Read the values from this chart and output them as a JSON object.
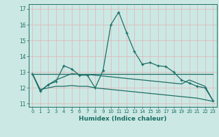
{
  "title": "",
  "xlabel": "Humidex (Indice chaleur)",
  "bg_color": "#cce8e4",
  "grid_color": "#ddbbbb",
  "line_color": "#1a6e64",
  "xlim": [
    -0.5,
    23.5
  ],
  "ylim": [
    10.8,
    17.3
  ],
  "yticks": [
    11,
    12,
    13,
    14,
    15,
    16,
    17
  ],
  "xticks": [
    0,
    1,
    2,
    3,
    4,
    5,
    6,
    7,
    8,
    9,
    10,
    11,
    12,
    13,
    14,
    15,
    16,
    17,
    18,
    19,
    20,
    21,
    22,
    23
  ],
  "series1_x": [
    0,
    1,
    2,
    3,
    4,
    5,
    6,
    7,
    8,
    9,
    10,
    11,
    12,
    13,
    14,
    15,
    16,
    17,
    18,
    19,
    20,
    21,
    22,
    23
  ],
  "series1_y": [
    12.9,
    11.8,
    12.2,
    12.4,
    13.4,
    13.2,
    12.8,
    12.8,
    12.0,
    13.1,
    16.0,
    16.8,
    15.5,
    14.3,
    13.5,
    13.6,
    13.4,
    13.35,
    13.0,
    12.5,
    12.3,
    12.1,
    12.0,
    11.2
  ],
  "series2_x": [
    0,
    1,
    2,
    3,
    4,
    5,
    6,
    7,
    8,
    9,
    10,
    11,
    12,
    13,
    14,
    15,
    16,
    17,
    18,
    19,
    20,
    21,
    22,
    23
  ],
  "series2_y": [
    12.9,
    12.9,
    12.9,
    12.9,
    12.9,
    12.9,
    12.9,
    12.9,
    12.9,
    12.9,
    12.9,
    12.9,
    12.9,
    12.9,
    12.9,
    12.9,
    12.9,
    12.9,
    12.9,
    12.9,
    12.9,
    12.9,
    12.9,
    12.9
  ],
  "series3_x": [
    0,
    1,
    2,
    3,
    4,
    5,
    6,
    7,
    8,
    9,
    10,
    11,
    12,
    13,
    14,
    15,
    16,
    17,
    18,
    19,
    20,
    21,
    22,
    23
  ],
  "series3_y": [
    12.9,
    11.8,
    12.2,
    12.5,
    12.7,
    12.9,
    12.85,
    12.85,
    12.8,
    12.75,
    12.7,
    12.65,
    12.6,
    12.55,
    12.5,
    12.45,
    12.4,
    12.35,
    12.3,
    12.25,
    12.5,
    12.3,
    12.1,
    11.2
  ],
  "series4_x": [
    0,
    1,
    2,
    3,
    4,
    5,
    6,
    7,
    8,
    9,
    10,
    11,
    12,
    13,
    14,
    15,
    16,
    17,
    18,
    19,
    20,
    21,
    22,
    23
  ],
  "series4_y": [
    12.9,
    11.9,
    12.0,
    12.1,
    12.1,
    12.15,
    12.1,
    12.1,
    12.0,
    11.95,
    11.9,
    11.85,
    11.8,
    11.75,
    11.7,
    11.65,
    11.6,
    11.55,
    11.5,
    11.45,
    11.4,
    11.35,
    11.25,
    11.15
  ]
}
